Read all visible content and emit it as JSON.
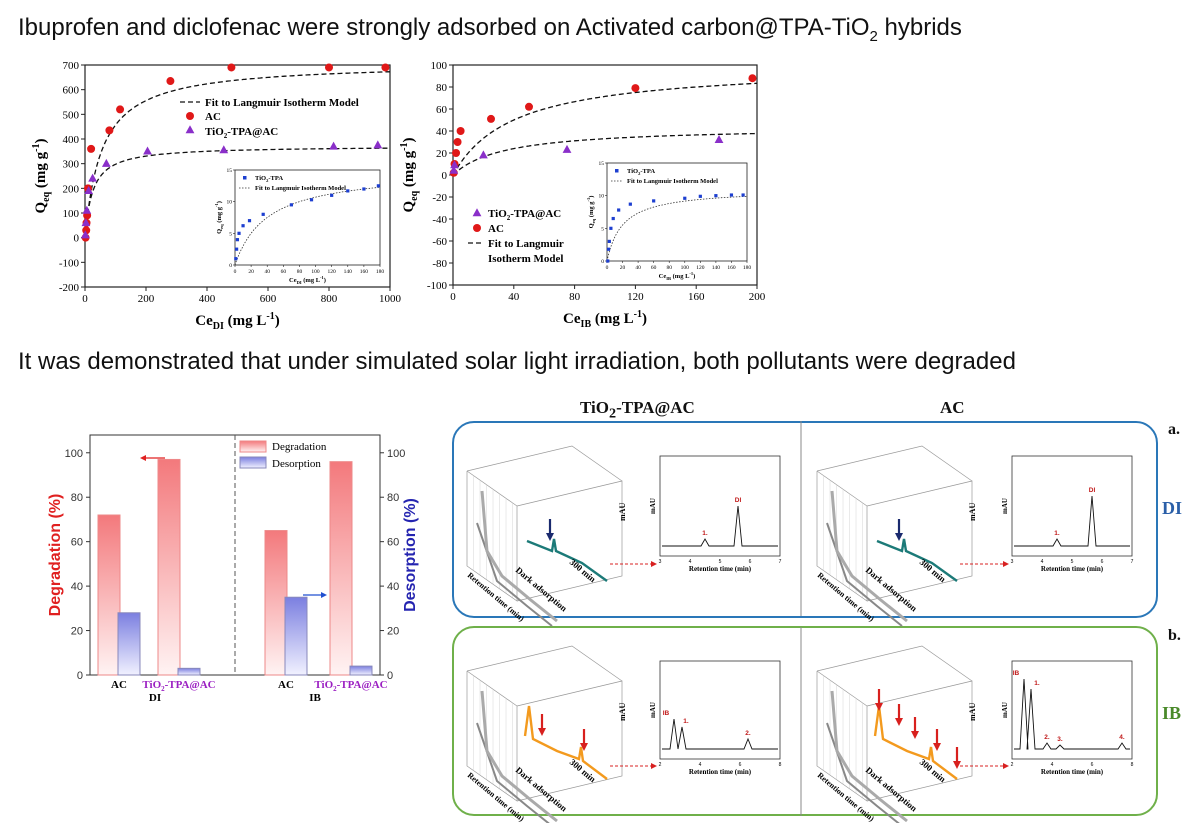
{
  "headings": {
    "top_main": "Ibuprofen and diclofenac were strongly adsorbed on Activated carbon@TPA-TiO",
    "top_sub": "2",
    "top_end": " hybrids",
    "middle": "It was demonstrated that under simulated solar light irradiation, both pollutants were degraded"
  },
  "chart_data": [
    {
      "id": "di_isotherm",
      "type": "scatter",
      "title": "",
      "xlabel": "Ce",
      "xlabel_sub": "DI",
      "xlabel_unit": " (mg L",
      "xlabel_sup": "-1",
      "xlabel_close": ")",
      "ylabel": "Q",
      "ylabel_sub": "eq",
      "ylabel_unit": " (mg g",
      "ylabel_sup": "-1",
      "ylabel_close": ")",
      "xlim": [
        0,
        1000
      ],
      "ylim": [
        -200,
        700
      ],
      "xticks": [
        "0",
        "200",
        "400",
        "600",
        "800",
        "1000"
      ],
      "yticks": [
        "-200",
        "-100",
        "0",
        "100",
        "200",
        "300",
        "400",
        "500",
        "600",
        "700"
      ],
      "legend": {
        "fit": "Fit to Langmuir Isotherm Model",
        "ac": "AC",
        "hyb_main": "TiO",
        "hyb_sub": "2",
        "hyb_end": "-TPA@AC"
      },
      "series": [
        {
          "name": "AC",
          "color": "#e01818",
          "marker": "circle",
          "x": [
            2,
            4,
            5,
            7,
            10,
            20,
            80,
            115,
            280,
            480,
            800,
            985
          ],
          "y": [
            0,
            30,
            60,
            90,
            200,
            360,
            435,
            520,
            635,
            690,
            690,
            690
          ]
        },
        {
          "name": "TiO2-TPA@AC",
          "color": "#8a2fc9",
          "marker": "triangle",
          "x": [
            1,
            3,
            6,
            12,
            25,
            70,
            205,
            455,
            815,
            960
          ],
          "y": [
            10,
            60,
            110,
            190,
            240,
            300,
            350,
            355,
            370,
            375
          ]
        }
      ],
      "fit_ac": {
        "qmax": 710,
        "k": 0.018
      },
      "fit_hyb": {
        "qmax": 372,
        "k": 0.04
      },
      "inset": {
        "legend": {
          "pts_main": "TiO",
          "pts_sub": "2",
          "pts_end": "-TPA",
          "fit": "Fit to Langmuir Isotherm Model"
        },
        "xlabel": "Ce",
        "xlabel_sub": "DI",
        "xlabel_unit": " (mg L",
        "xlabel_sup": "-1",
        "xlabel_close": ")",
        "ylabel": "Q",
        "ylabel_sub": "eq",
        "ylabel_unit": " (mg g",
        "ylabel_sup": "-1",
        "ylabel_close": ")",
        "xlim": [
          0,
          180
        ],
        "ylim": [
          0,
          15
        ],
        "xticks": [
          "0",
          "20",
          "40",
          "60",
          "80",
          "100",
          "120",
          "140",
          "160",
          "180"
        ],
        "yticks": [
          "0",
          "5",
          "10",
          "15"
        ],
        "x": [
          1,
          2,
          3,
          5,
          10,
          18,
          35,
          70,
          95,
          120,
          140,
          160,
          178
        ],
        "y": [
          1,
          2.5,
          4,
          5,
          6.2,
          7,
          8,
          9.5,
          10.3,
          11,
          11.7,
          12,
          12.5
        ],
        "fit": {
          "qmax": 15,
          "k": 0.025
        }
      }
    },
    {
      "id": "ib_isotherm",
      "type": "scatter",
      "xlabel": "Ce",
      "xlabel_sub": "IB",
      "xlabel_unit": " (mg L",
      "xlabel_sup": "-1",
      "xlabel_close": ")",
      "ylabel": "Q",
      "ylabel_sub": "eq",
      "ylabel_unit": " (mg g",
      "ylabel_sup": "-1",
      "ylabel_close": ")",
      "xlim": [
        0,
        200
      ],
      "ylim": [
        -100,
        100
      ],
      "xticks": [
        "0",
        "40",
        "80",
        "120",
        "160",
        "200"
      ],
      "yticks": [
        "-100",
        "-80",
        "-60",
        "-40",
        "-20",
        "0",
        "20",
        "40",
        "60",
        "80",
        "100"
      ],
      "legend": {
        "hyb_main": "TiO",
        "hyb_sub": "2",
        "hyb_end": "-TPA@AC",
        "ac": "AC",
        "fit1": "Fit to Langmuir",
        "fit2": "Isotherm Model"
      },
      "series": [
        {
          "name": "AC",
          "color": "#e01818",
          "marker": "circle",
          "x": [
            0.5,
            1,
            2,
            3,
            5,
            25,
            50,
            120,
            197
          ],
          "y": [
            2,
            10,
            20,
            30,
            40,
            51,
            62,
            79,
            88
          ]
        },
        {
          "name": "TiO2-TPA@AC",
          "color": "#8a2fc9",
          "marker": "triangle",
          "x": [
            0.5,
            1,
            20,
            75,
            175
          ],
          "y": [
            4,
            9,
            18,
            23,
            32
          ]
        }
      ],
      "fit_ac": {
        "qmax": 100,
        "k": 0.025
      },
      "fit_hyb": {
        "qmax": 44,
        "k": 0.03
      },
      "inset": {
        "legend": {
          "pts_main": "TiO",
          "pts_sub": "2",
          "pts_end": "-TPA",
          "fit": "Fit to Langmuir Isotherm Model"
        },
        "xlabel": "Ce",
        "xlabel_sub": "IB",
        "xlabel_unit": " (mg L",
        "xlabel_sup": "-1",
        "xlabel_close": ")",
        "ylabel": "Q",
        "ylabel_sub": "eq",
        "ylabel_unit": " (mg g",
        "ylabel_sup": "-1",
        "ylabel_close": ")",
        "xlim": [
          0,
          180
        ],
        "ylim": [
          0,
          15
        ],
        "xticks": [
          "0",
          "20",
          "40",
          "60",
          "80",
          "100",
          "120",
          "140",
          "160",
          "180"
        ],
        "yticks": [
          "0",
          "5",
          "10",
          "15"
        ],
        "x": [
          1,
          2,
          3,
          5,
          8,
          15,
          30,
          60,
          100,
          120,
          140,
          160,
          175
        ],
        "y": [
          0,
          1.8,
          3,
          5,
          6.5,
          7.8,
          8.7,
          9.2,
          9.6,
          9.9,
          10,
          10.1,
          10.1
        ],
        "fit": {
          "qmax": 11,
          "k": 0.05
        }
      }
    },
    {
      "id": "degradation_bar",
      "type": "bar",
      "ylabel_left": "Degradation (%)",
      "ylabel_right": "Desorption (%)",
      "ylim": [
        0,
        108
      ],
      "yticks": [
        "0",
        "20",
        "40",
        "60",
        "80",
        "100"
      ],
      "legend": {
        "degradation": "Degradation",
        "desorption": "Desorption"
      },
      "groups": [
        {
          "group": "DI",
          "bars": [
            {
              "label": "AC",
              "degradation": 72,
              "desorption": 28
            },
            {
              "label_main": "TiO",
              "label_sub": "2",
              "label_end": "-TPA@AC",
              "degradation": 97,
              "desorption": 3
            }
          ]
        },
        {
          "group": "IB",
          "bars": [
            {
              "label": "AC",
              "degradation": 65,
              "desorption": 35
            },
            {
              "label_main": "TiO",
              "label_sub": "2",
              "label_end": "-TPA@AC",
              "degradation": 96,
              "desorption": 4
            }
          ]
        }
      ],
      "colors": {
        "degradation": "#f3797c",
        "desorption": "#7b7fe0",
        "left_axis": "#e02020",
        "right_axis": "#2424b0",
        "hyb_label": "#9b1fc2"
      }
    }
  ],
  "chromatograms": {
    "col_left_main": "TiO",
    "col_left_sub": "2",
    "col_left_end": "-TPA@AC",
    "col_right": "AC",
    "panel_a": "a.",
    "panel_b": "b.",
    "row_di": "DI",
    "row_ib": "IB",
    "label_300": "300 min",
    "label_dark": "Dark adsorption",
    "label_rt": "Retention time (min)",
    "label_mau": "mAU",
    "peak_1": "1.",
    "peak_2": "2.",
    "peak_3": "3.",
    "peak_4": "4.",
    "peak_di": "DI",
    "peak_ib": "IB",
    "ticks_di": [
      "3",
      "4",
      "5",
      "6",
      "7"
    ],
    "ticks_ib": [
      "2",
      "4",
      "6",
      "8"
    ],
    "colors": {
      "di_line": "#1c7a78",
      "ib_line": "#f39a1e",
      "di_arrow": "#1a2a6e",
      "ib_arrow": "#d8201e",
      "panel_a": "#2a77b8",
      "panel_b": "#6fb04a"
    }
  }
}
